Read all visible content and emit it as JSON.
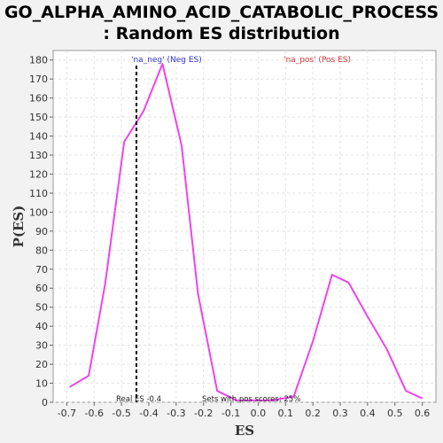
{
  "chart_data": {
    "type": "line",
    "title_line1": "GO_ALPHA_AMINO_ACID_CATABOLIC_PROCESS",
    "title_line2": ": Random ES distribution",
    "xlabel": "ES",
    "ylabel": "P(ES)",
    "xlim": [
      -0.75,
      0.65
    ],
    "ylim": [
      0,
      185
    ],
    "x_ticks": [
      -0.7,
      -0.6,
      -0.5,
      -0.4,
      -0.3,
      -0.2,
      -0.1,
      0.0,
      0.1,
      0.2,
      0.3,
      0.4,
      0.5,
      0.6
    ],
    "x_tick_labels": [
      "-0.7",
      "-0.6",
      "-0.5",
      "-0.4",
      "-0.3",
      "-0.2",
      "-0.1",
      "0.0",
      "0.1",
      "0.2",
      "0.3",
      "0.4",
      "0.5",
      "0.6"
    ],
    "y_ticks": [
      0,
      10,
      20,
      30,
      40,
      50,
      60,
      70,
      80,
      90,
      100,
      110,
      120,
      130,
      140,
      150,
      160,
      170,
      180
    ],
    "grid": true,
    "series": [
      {
        "color": "#ee44ee",
        "x": [
          -0.69,
          -0.62,
          -0.56,
          -0.49,
          -0.42,
          -0.35,
          -0.28,
          -0.22,
          -0.15,
          -0.08,
          -0.02,
          0.05,
          0.13,
          0.2,
          0.27,
          0.33,
          0.4,
          0.47,
          0.54,
          0.6
        ],
        "y": [
          8,
          14,
          62,
          137,
          153,
          178,
          135,
          57,
          6,
          1,
          1,
          1,
          3,
          32,
          67,
          63,
          45,
          28,
          6,
          2
        ]
      }
    ],
    "real_es": -0.4455,
    "legend_neg": "'na_neg' (Neg ES)",
    "legend_pos": "'na_pos' (Pos ES)",
    "legend_neg_color": "#3333cc",
    "legend_pos_color": "#dd3333",
    "annotation_real_es": "Real ES -0.4",
    "annotation_sets": "Sets with pos scores: 25%"
  }
}
